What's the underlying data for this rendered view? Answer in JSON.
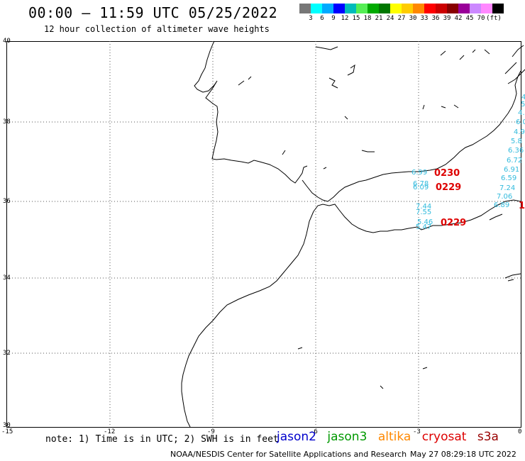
{
  "header": {
    "title": "00:00 – 11:59 UTC 05/25/2022",
    "subtitle": "12 hour collection of altimeter wave heights"
  },
  "legend": {
    "unit": "(ft)",
    "colors": [
      "#777777",
      "#00ffff",
      "#00aaff",
      "#0000ff",
      "#00bbbb",
      "#55ee55",
      "#00aa00",
      "#007700",
      "#ffff00",
      "#ffcc00",
      "#ff8800",
      "#ff0000",
      "#cc0000",
      "#880000",
      "#990099",
      "#cc88ff",
      "#ff88ff",
      "#000000"
    ],
    "labels": [
      "3",
      "6",
      "9",
      "12",
      "15",
      "18",
      "21",
      "24",
      "27",
      "30",
      "33",
      "36",
      "39",
      "42",
      "45",
      "70"
    ]
  },
  "axes": {
    "lon_labels": [
      "-15",
      "-12",
      "-9",
      "-6",
      "-3",
      "0"
    ],
    "lat_labels": [
      "40",
      "38",
      "36",
      "34",
      "32",
      "30"
    ]
  },
  "tracks": {
    "cyan_values": [
      {
        "text": "4"
      },
      {
        "text": "5"
      },
      {
        "text": "4."
      },
      {
        "text": "6.0"
      },
      {
        "text": "4.9"
      },
      {
        "text": "5.8"
      },
      {
        "text": "6.36"
      },
      {
        "text": "6.72"
      },
      {
        "text": "6.91"
      },
      {
        "text": "6.59"
      },
      {
        "text": "7.24"
      },
      {
        "text": "7.06"
      },
      {
        "text": "6.89"
      },
      {
        "text": "6.99"
      },
      {
        "text": "6.78"
      },
      {
        "text": "6.09"
      },
      {
        "text": "7.44"
      },
      {
        "text": "7.55"
      },
      {
        "text": "5.46"
      },
      {
        "text": "5.47"
      }
    ],
    "red_times": [
      {
        "text": "0230"
      },
      {
        "text": "0229"
      },
      {
        "text": "0229"
      },
      {
        "text": "1"
      }
    ]
  },
  "note": "note: 1) Time is in UTC; 2) SWH is in feet",
  "satellites": [
    {
      "name": "jason2",
      "color": "#0000cc"
    },
    {
      "name": "jason3",
      "color": "#009900"
    },
    {
      "name": "altika",
      "color": "#ff8800"
    },
    {
      "name": "cryosat",
      "color": "#dd0000"
    },
    {
      "name": "s3a",
      "color": "#990000"
    }
  ],
  "footer": {
    "credit": "NOAA/NESDIS Center for Satellite Applications and Research",
    "timestamp": "May 27 08:29:18 UTC 2022"
  }
}
